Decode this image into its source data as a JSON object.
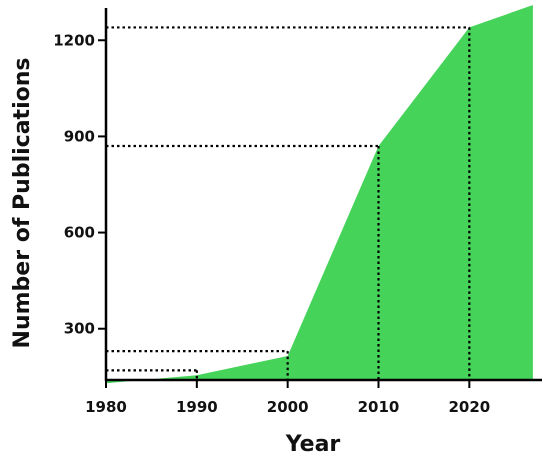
{
  "chart_data": {
    "type": "area",
    "title": "",
    "xlabel": "Year",
    "ylabel": "Number of Publications",
    "x": [
      1980,
      1990,
      2000,
      2010,
      2020,
      2027
    ],
    "series": [
      {
        "values": [
          130,
          155,
          215,
          870,
          1240,
          1310
        ]
      }
    ],
    "xticks": [
      "1980",
      "1990",
      "2000",
      "2010",
      "2020"
    ],
    "yticks": [
      "300",
      "600",
      "900",
      "1200"
    ],
    "xlim": [
      1980,
      2028
    ],
    "ylim": [
      140,
      1310
    ],
    "reference_lines": [
      {
        "x": 1990,
        "y": 170
      },
      {
        "x": 2000,
        "y": 230
      },
      {
        "x": 2010,
        "y": 870
      },
      {
        "x": 2020,
        "y": 1240
      }
    ],
    "grid": false,
    "legend": "none",
    "colors": {
      "fill": "#45d35a",
      "axis": "#000000",
      "guides": "#000000"
    }
  }
}
